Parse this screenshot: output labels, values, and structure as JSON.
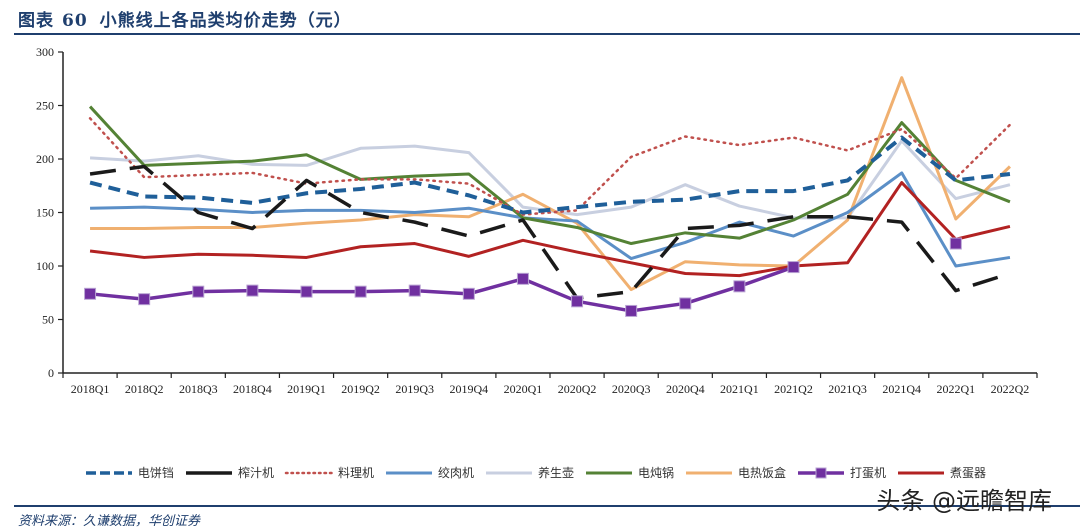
{
  "header": {
    "figure_label": "图表",
    "figure_number": "60",
    "title": "小熊线上各品类均价走势（元）"
  },
  "source": "资料来源：久谦数据，华创证券",
  "watermark": "头条 @远瞻智库",
  "chart_data": {
    "type": "line",
    "title": "小熊线上各品类均价走势（元）",
    "xlabel": "",
    "ylabel": "",
    "ylim": [
      0,
      300
    ],
    "yticks": [
      0,
      50,
      100,
      150,
      200,
      250,
      300
    ],
    "grid": false,
    "legend_position": "bottom",
    "categories": [
      "2018Q1",
      "2018Q2",
      "2018Q3",
      "2018Q4",
      "2019Q1",
      "2019Q2",
      "2019Q3",
      "2019Q4",
      "2020Q1",
      "2020Q2",
      "2020Q3",
      "2020Q4",
      "2021Q1",
      "2021Q2",
      "2021Q3",
      "2021Q4",
      "2022Q1",
      "2022Q2"
    ],
    "series": [
      {
        "name": "电饼铛",
        "color": "#1f5f99",
        "style": "dashed-thick",
        "values": [
          178,
          165,
          164,
          159,
          168,
          172,
          178,
          166,
          150,
          155,
          160,
          162,
          170,
          170,
          180,
          220,
          180,
          186
        ]
      },
      {
        "name": "榨汁机",
        "color": "#1a1a1a",
        "style": "long-dash",
        "values": [
          186,
          193,
          150,
          135,
          180,
          150,
          141,
          128,
          143,
          70,
          76,
          135,
          138,
          146,
          146,
          141,
          77,
          93
        ]
      },
      {
        "name": "料理机",
        "color": "#c0504d",
        "style": "dotted",
        "values": [
          238,
          183,
          185,
          187,
          177,
          181,
          181,
          177,
          148,
          152,
          202,
          221,
          213,
          220,
          208,
          228,
          182,
          232
        ]
      },
      {
        "name": "绞肉机",
        "color": "#5b8fc7",
        "style": "solid",
        "values": [
          154,
          155,
          153,
          150,
          152,
          152,
          150,
          154,
          145,
          142,
          107,
          122,
          141,
          128,
          150,
          187,
          100,
          108
        ]
      },
      {
        "name": "养生壶",
        "color": "#c8cfe0",
        "style": "solid",
        "values": [
          201,
          198,
          203,
          195,
          194,
          210,
          212,
          206,
          155,
          148,
          155,
          176,
          156,
          145,
          145,
          217,
          163,
          176
        ]
      },
      {
        "name": "电炖锅",
        "color": "#548235",
        "style": "solid",
        "values": [
          249,
          194,
          196,
          198,
          204,
          181,
          184,
          186,
          145,
          136,
          121,
          131,
          126,
          143,
          167,
          234,
          180,
          160
        ]
      },
      {
        "name": "电热饭盒",
        "color": "#f0b070",
        "style": "solid",
        "values": [
          135,
          135,
          136,
          136,
          140,
          143,
          148,
          146,
          167,
          140,
          78,
          104,
          101,
          100,
          143,
          276,
          144,
          193
        ]
      },
      {
        "name": "打蛋机",
        "color": "#7030a0",
        "style": "solid-square-marker",
        "values": [
          74,
          69,
          76,
          77,
          76,
          76,
          77,
          74,
          88,
          67,
          58,
          65,
          81,
          99,
          null,
          null,
          121,
          null
        ]
      },
      {
        "name": "煮蛋器",
        "color": "#b22222",
        "style": "solid",
        "values": [
          114,
          108,
          111,
          110,
          108,
          118,
          121,
          109,
          124,
          113,
          103,
          93,
          91,
          100,
          103,
          178,
          125,
          137
        ]
      }
    ]
  }
}
